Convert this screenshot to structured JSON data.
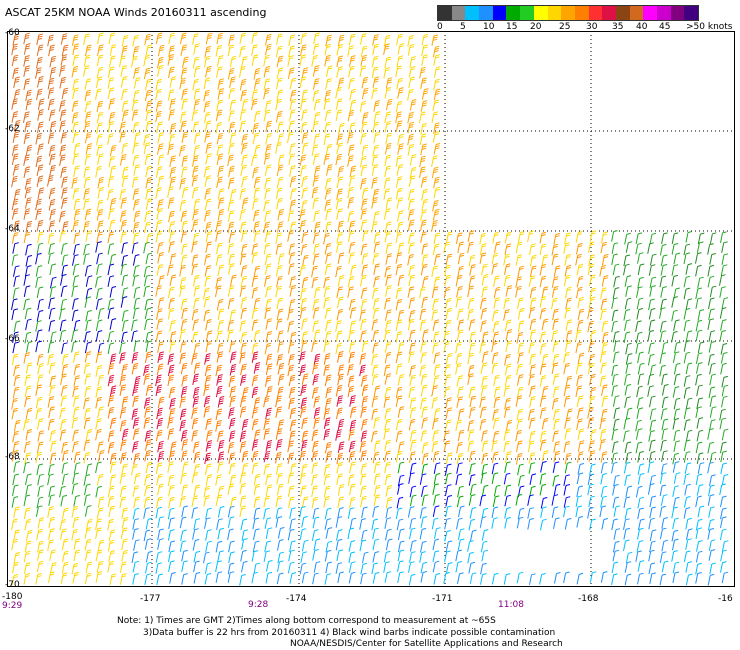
{
  "title": "ASCAT 25KM NOAA Winds 20160311 ascending",
  "colorbar": {
    "colors": [
      "#333333",
      "#888888",
      "#00bfff",
      "#1e90ff",
      "#0000ff",
      "#00aa00",
      "#22cc22",
      "#ffff00",
      "#ffd700",
      "#ffa500",
      "#ff7f00",
      "#ff3030",
      "#dd1144",
      "#8b4513",
      "#d2691e",
      "#ff00ff",
      "#cc00cc",
      "#800080",
      "#400080"
    ],
    "labels": [
      "0",
      "5",
      "10",
      "15",
      "20",
      "25",
      "30",
      "35",
      "40",
      "45",
      ">50 knots"
    ]
  },
  "lat_labels": [
    "-60",
    "-62",
    "-64",
    "-66",
    "-68",
    "-70"
  ],
  "lon_labels": [
    "-180",
    "-177",
    "-174",
    "-171",
    "-168",
    "-16"
  ],
  "time_labels": [
    "9:29",
    "9:28",
    "11:08"
  ],
  "notes": {
    "line1": "Note: 1) Times are GMT 2)Times along bottom correspond to measurement at ~65S",
    "line2": "3)Data buffer is 22 hrs from 20160311 4) Black wind barbs indicate possible contamination",
    "line3": "NOAA/NESDIS/Center for Satellite Applications and Research"
  }
}
